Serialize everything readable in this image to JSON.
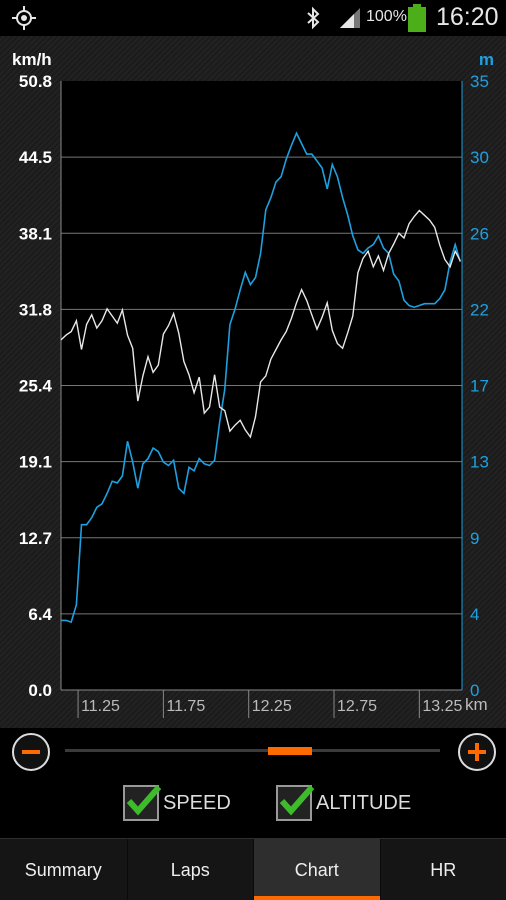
{
  "status_bar": {
    "battery_percent": "100%",
    "time": "16:20",
    "icons": [
      "gps-icon",
      "bluetooth-icon",
      "signal-icon",
      "battery-icon"
    ]
  },
  "chart": {
    "left_unit": "km/h",
    "right_unit": "m",
    "x_unit": "km",
    "colors": {
      "speed": "#e8e8e8",
      "altitude": "#1ea0e0",
      "accent": "#ff6a00",
      "grid": "#777777"
    }
  },
  "chart_data": {
    "type": "line",
    "x_label": "km",
    "xlim": [
      11.15,
      13.5
    ],
    "x_ticks": [
      "11.25",
      "11.75",
      "12.25",
      "12.75",
      "13.25"
    ],
    "y_left_label": "km/h",
    "y_left_ticks": [
      "0.0",
      "6.4",
      "12.7",
      "19.1",
      "25.4",
      "31.8",
      "38.1",
      "44.5",
      "50.8"
    ],
    "y_left_lim": [
      0,
      50.8
    ],
    "y_right_label": "m",
    "y_right_ticks": [
      "0",
      "4",
      "9",
      "13",
      "17",
      "22",
      "26",
      "30",
      "35"
    ],
    "y_right_lim": [
      0,
      35
    ],
    "grid": true,
    "series": [
      {
        "name": "SPEED",
        "axis": "left",
        "color": "#e8e8e8",
        "x": [
          11.15,
          11.18,
          11.21,
          11.24,
          11.27,
          11.3,
          11.33,
          11.36,
          11.39,
          11.42,
          11.45,
          11.48,
          11.51,
          11.54,
          11.57,
          11.6,
          11.63,
          11.66,
          11.69,
          11.72,
          11.75,
          11.78,
          11.81,
          11.84,
          11.87,
          11.9,
          11.93,
          11.96,
          11.99,
          12.02,
          12.05,
          12.08,
          12.11,
          12.14,
          12.17,
          12.2,
          12.23,
          12.26,
          12.29,
          12.32,
          12.35,
          12.38,
          12.41,
          12.44,
          12.47,
          12.5,
          12.53,
          12.56,
          12.59,
          12.62,
          12.65,
          12.68,
          12.71,
          12.74,
          12.77,
          12.8,
          12.83,
          12.86,
          12.89,
          12.92,
          12.95,
          12.98,
          13.01,
          13.04,
          13.07,
          13.1,
          13.13,
          13.16,
          13.19,
          13.22,
          13.25,
          13.28,
          13.31,
          13.34,
          13.37,
          13.4,
          13.43,
          13.46,
          13.49
        ],
        "values": [
          29.2,
          29.6,
          29.9,
          30.8,
          28.4,
          30.5,
          31.3,
          30.2,
          30.8,
          31.8,
          31.2,
          30.6,
          31.7,
          29.6,
          28.5,
          24.1,
          26.2,
          27.8,
          26.5,
          27.1,
          29.7,
          30.4,
          31.4,
          29.8,
          27.4,
          26.3,
          24.8,
          26.1,
          23.1,
          23.6,
          26.3,
          23.6,
          23.3,
          21.6,
          22.1,
          22.5,
          21.7,
          21.1,
          22.8,
          25.7,
          26.2,
          27.6,
          28.4,
          29.2,
          29.9,
          31.0,
          32.3,
          33.4,
          32.5,
          31.3,
          30.1,
          31.1,
          32.3,
          30.0,
          28.9,
          28.5,
          29.8,
          31.2,
          34.8,
          36.0,
          36.6,
          35.3,
          36.2,
          35.0,
          36.4,
          37.2,
          38.1,
          37.7,
          38.9,
          39.5,
          40.0,
          39.6,
          39.2,
          38.6,
          37.1,
          35.9,
          35.3,
          36.6,
          35.8
        ]
      },
      {
        "name": "ALTITUDE",
        "axis": "right",
        "color": "#1ea0e0",
        "x": [
          11.15,
          11.18,
          11.21,
          11.24,
          11.27,
          11.3,
          11.33,
          11.36,
          11.39,
          11.42,
          11.45,
          11.48,
          11.51,
          11.54,
          11.57,
          11.6,
          11.63,
          11.66,
          11.69,
          11.72,
          11.75,
          11.78,
          11.81,
          11.84,
          11.87,
          11.9,
          11.93,
          11.96,
          11.99,
          12.02,
          12.05,
          12.08,
          12.11,
          12.14,
          12.17,
          12.2,
          12.23,
          12.26,
          12.29,
          12.32,
          12.35,
          12.38,
          12.41,
          12.44,
          12.47,
          12.5,
          12.53,
          12.56,
          12.59,
          12.62,
          12.65,
          12.68,
          12.71,
          12.74,
          12.77,
          12.8,
          12.83,
          12.86,
          12.89,
          12.92,
          12.95,
          12.98,
          13.01,
          13.04,
          13.07,
          13.1,
          13.13,
          13.16,
          13.19,
          13.22,
          13.25,
          13.28,
          13.31,
          13.34,
          13.37,
          13.4,
          13.43,
          13.46,
          13.49
        ],
        "values": [
          4.0,
          4.0,
          3.9,
          4.9,
          9.5,
          9.5,
          9.9,
          10.5,
          10.7,
          11.3,
          12.0,
          11.9,
          12.3,
          14.3,
          13.1,
          11.6,
          13.0,
          13.3,
          13.9,
          13.7,
          13.1,
          12.9,
          13.2,
          11.6,
          11.3,
          12.8,
          12.6,
          13.3,
          13.0,
          12.9,
          13.2,
          15.4,
          17.3,
          21.0,
          21.9,
          23.0,
          24.0,
          23.3,
          23.7,
          25.1,
          27.6,
          28.3,
          29.2,
          29.5,
          30.5,
          31.3,
          32.0,
          31.4,
          30.8,
          30.8,
          30.4,
          30.0,
          28.8,
          30.2,
          29.5,
          28.3,
          27.3,
          26.1,
          25.3,
          25.1,
          25.4,
          25.6,
          26.1,
          25.4,
          25.1,
          23.9,
          23.5,
          22.4,
          22.1,
          22.0,
          22.1,
          22.2,
          22.2,
          22.2,
          22.5,
          23.0,
          24.6,
          25.6,
          24.6
        ]
      }
    ]
  },
  "zoom": {
    "thumb_fraction": 0.6
  },
  "checkboxes": [
    {
      "label": "SPEED",
      "checked": true
    },
    {
      "label": "ALTITUDE",
      "checked": true
    }
  ],
  "tabs": [
    "Summary",
    "Laps",
    "Chart",
    "HR"
  ],
  "active_tab": "Chart"
}
